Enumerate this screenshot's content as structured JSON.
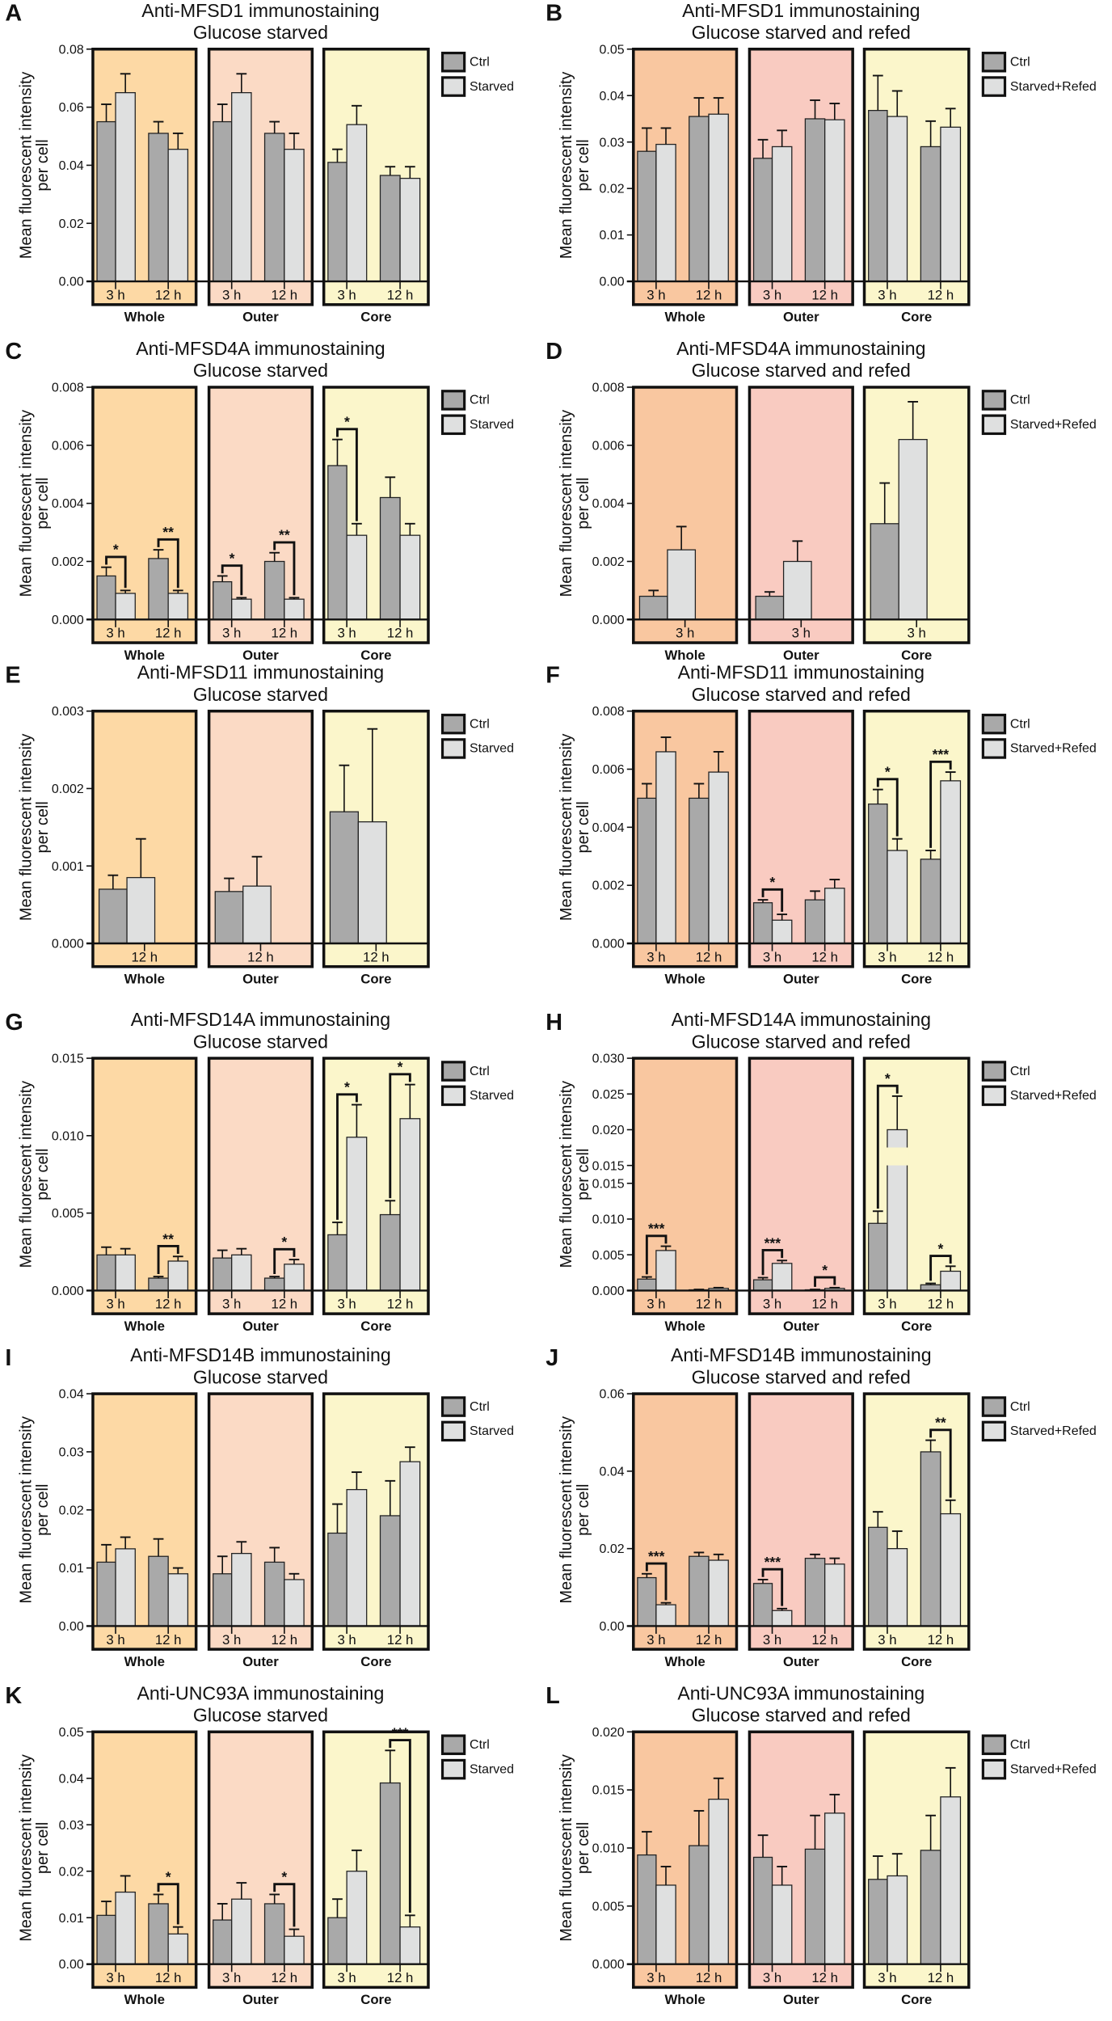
{
  "colors": {
    "ctrl": "#a9a9a9",
    "treated": "#dfe0e0",
    "left_bg": [
      "#fdd9a5",
      "#fbdac5",
      "#fbf6cb"
    ],
    "right_bg": [
      "#f9c7a0",
      "#f9cbc1",
      "#fbf6cb"
    ]
  },
  "chart_data": [
    {
      "type": "bar",
      "letter": "A",
      "title": [
        "Anti-MFSD1 immunostaining",
        "Glucose starved"
      ],
      "ylabel": [
        "Mean fluorescent intensity",
        "per cell"
      ],
      "ylim": [
        0,
        0.08
      ],
      "yticks": [
        "0.00",
        "0.02",
        "0.04",
        "0.06",
        "0.08"
      ],
      "legend": [
        "Ctrl",
        "Starved"
      ],
      "regions": [
        "Whole",
        "Outer",
        "Core"
      ],
      "timepoints": [
        "3 h",
        "12 h"
      ],
      "data": {
        "Whole": [
          [
            0.055,
            0.006,
            0.065,
            0.0065,
            ""
          ],
          [
            0.051,
            0.004,
            0.0455,
            0.0055,
            ""
          ]
        ],
        "Outer": [
          [
            0.055,
            0.006,
            0.065,
            0.0065,
            ""
          ],
          [
            0.051,
            0.004,
            0.0455,
            0.0055,
            ""
          ]
        ],
        "Core": [
          [
            0.041,
            0.0045,
            0.054,
            0.0065,
            ""
          ],
          [
            0.0365,
            0.003,
            0.0355,
            0.004,
            ""
          ]
        ]
      }
    },
    {
      "type": "bar",
      "letter": "B",
      "title": [
        "Anti-MFSD1 immunostaining",
        "Glucose starved and refed"
      ],
      "ylabel": [
        "Mean fluorescent intensity",
        "per cell"
      ],
      "ylim": [
        0,
        0.05
      ],
      "yticks": [
        "0.00",
        "0.01",
        "0.02",
        "0.03",
        "0.04",
        "0.05"
      ],
      "legend": [
        "Ctrl",
        "Starved+Refed"
      ],
      "regions": [
        "Whole",
        "Outer",
        "Core"
      ],
      "timepoints": [
        "3 h",
        "12 h"
      ],
      "data": {
        "Whole": [
          [
            0.028,
            0.005,
            0.0295,
            0.0035,
            ""
          ],
          [
            0.0355,
            0.004,
            0.036,
            0.0035,
            ""
          ]
        ],
        "Outer": [
          [
            0.0265,
            0.004,
            0.029,
            0.0035,
            ""
          ],
          [
            0.035,
            0.004,
            0.0348,
            0.0035,
            ""
          ]
        ],
        "Core": [
          [
            0.0368,
            0.0075,
            0.0355,
            0.0055,
            ""
          ],
          [
            0.029,
            0.0055,
            0.0332,
            0.004,
            ""
          ]
        ]
      }
    },
    {
      "type": "bar",
      "letter": "C",
      "title": [
        "Anti-MFSD4A immunostaining",
        "Glucose starved"
      ],
      "ylabel": [
        "Mean fluorescent intensity",
        "per cell"
      ],
      "ylim": [
        0,
        0.008
      ],
      "yticks": [
        "0.000",
        "0.002",
        "0.004",
        "0.006",
        "0.008"
      ],
      "legend": [
        "Ctrl",
        "Starved"
      ],
      "regions": [
        "Whole",
        "Outer",
        "Core"
      ],
      "timepoints": [
        "3 h",
        "12 h"
      ],
      "data": {
        "Whole": [
          [
            0.0015,
            0.0003,
            0.0009,
            0.0001,
            "*"
          ],
          [
            0.0021,
            0.0003,
            0.0009,
            0.0001,
            "**"
          ]
        ],
        "Outer": [
          [
            0.0013,
            0.0002,
            0.0007,
            5e-05,
            "*"
          ],
          [
            0.002,
            0.0003,
            0.0007,
            5e-05,
            "**"
          ]
        ],
        "Core": [
          [
            0.0053,
            0.0009,
            0.0029,
            0.0004,
            "*"
          ],
          [
            0.0042,
            0.0007,
            0.0029,
            0.0004,
            ""
          ]
        ]
      }
    },
    {
      "type": "bar",
      "letter": "D",
      "title": [
        "Anti-MFSD4A immunostaining",
        "Glucose starved and refed"
      ],
      "ylabel": [
        "Mean fluorescent intensity",
        "per cell"
      ],
      "ylim": [
        0,
        0.008
      ],
      "yticks": [
        "0.000",
        "0.002",
        "0.004",
        "0.006",
        "0.008"
      ],
      "legend": [
        "Ctrl",
        "Starved+Refed"
      ],
      "regions": [
        "Whole",
        "Outer",
        "Core"
      ],
      "timepoints": [
        "3 h"
      ],
      "data": {
        "Whole": [
          [
            0.0008,
            0.0002,
            0.0024,
            0.0008,
            ""
          ]
        ],
        "Outer": [
          [
            0.0008,
            0.00015,
            0.002,
            0.0007,
            ""
          ]
        ],
        "Core": [
          [
            0.0033,
            0.0014,
            0.0062,
            0.0013,
            ""
          ]
        ]
      }
    },
    {
      "type": "bar",
      "letter": "E",
      "title": [
        "Anti-MFSD11 immunostaining",
        "Glucose starved"
      ],
      "ylabel": [
        "Mean fluorescent intensity",
        "per cell"
      ],
      "ylim": [
        0,
        0.003
      ],
      "yticks": [
        "0.000",
        "0.001",
        "0.002",
        "0.003"
      ],
      "legend": [
        "Ctrl",
        "Starved"
      ],
      "regions": [
        "Whole",
        "Outer",
        "Core"
      ],
      "timepoints": [
        "12 h"
      ],
      "data": {
        "Whole": [
          [
            0.0007,
            0.00018,
            0.00085,
            0.0005,
            ""
          ]
        ],
        "Outer": [
          [
            0.00067,
            0.00017,
            0.00074,
            0.00038,
            ""
          ]
        ],
        "Core": [
          [
            0.0017,
            0.0006,
            0.00157,
            0.0012,
            ""
          ]
        ]
      }
    },
    {
      "type": "bar",
      "letter": "F",
      "title": [
        "Anti-MFSD11 immunostaining",
        "Glucose starved and refed"
      ],
      "ylabel": [
        "Mean fluorescent intensity",
        "per cell"
      ],
      "ylim": [
        0,
        0.008
      ],
      "yticks": [
        "0.000",
        "0.002",
        "0.004",
        "0.006",
        "0.008"
      ],
      "legend": [
        "Ctrl",
        "Starved+Refed"
      ],
      "regions": [
        "Whole",
        "Outer",
        "Core"
      ],
      "timepoints": [
        "3 h",
        "12 h"
      ],
      "data": {
        "Whole": [
          [
            0.005,
            0.0005,
            0.0066,
            0.0005,
            ""
          ],
          [
            0.005,
            0.0005,
            0.0059,
            0.0007,
            ""
          ]
        ],
        "Outer": [
          [
            0.0014,
            0.0001,
            0.0008,
            0.0002,
            "*"
          ],
          [
            0.0015,
            0.0003,
            0.0019,
            0.0003,
            ""
          ]
        ],
        "Core": [
          [
            0.0048,
            0.0005,
            0.0032,
            0.0004,
            "*"
          ],
          [
            0.0029,
            0.0003,
            0.0056,
            0.0003,
            "***"
          ]
        ]
      }
    },
    {
      "type": "bar",
      "letter": "G",
      "title": [
        "Anti-MFSD14A immunostaining",
        "Glucose starved"
      ],
      "ylabel": [
        "Mean fluorescent intensity",
        "per cell"
      ],
      "ylim": [
        0,
        0.015
      ],
      "yticks": [
        "0.000",
        "0.005",
        "0.010",
        "0.015"
      ],
      "legend": [
        "Ctrl",
        "Starved"
      ],
      "regions": [
        "Whole",
        "Outer",
        "Core"
      ],
      "timepoints": [
        "3 h",
        "12 h"
      ],
      "data": {
        "Whole": [
          [
            0.0023,
            0.0005,
            0.0023,
            0.0004,
            ""
          ],
          [
            0.0008,
            0.0001,
            0.0019,
            0.0003,
            "**"
          ]
        ],
        "Outer": [
          [
            0.0021,
            0.0005,
            0.0023,
            0.0004,
            ""
          ],
          [
            0.0008,
            0.0001,
            0.0017,
            0.0003,
            "*"
          ]
        ],
        "Core": [
          [
            0.0036,
            0.0008,
            0.0099,
            0.0021,
            "*"
          ],
          [
            0.0049,
            0.0009,
            0.0111,
            0.0022,
            "*"
          ]
        ]
      }
    },
    {
      "type": "bar",
      "letter": "H",
      "title": [
        "Anti-MFSD14A immunostaining",
        "Glucose starved and refed"
      ],
      "ylabel": [
        "Mean fluorescent intensity",
        "per cell"
      ],
      "ylim": [
        0,
        0.03
      ],
      "axis_break": {
        "at": 0.015,
        "gap": 0.0025
      },
      "yticks": [
        "0.000",
        "0.005",
        "0.010",
        "0.015"
      ],
      "yticks_upper": [
        "0.015",
        "0.020",
        "0.025",
        "0.030"
      ],
      "legend": [
        "Ctrl",
        "Starved+Refed"
      ],
      "regions": [
        "Whole",
        "Outer",
        "Core"
      ],
      "timepoints": [
        "3 h",
        "12 h"
      ],
      "data": {
        "Whole": [
          [
            0.0016,
            0.0003,
            0.0056,
            0.0006,
            "***"
          ],
          [
            0.0001,
            5e-05,
            0.0003,
            0.0001,
            ""
          ]
        ],
        "Outer": [
          [
            0.0015,
            0.0003,
            0.0038,
            0.0004,
            "***"
          ],
          [
            0.0001,
            5e-05,
            0.0003,
            0.0001,
            "*"
          ]
        ],
        "Core": [
          [
            0.0094,
            0.0017,
            0.02,
            0.0047,
            "*"
          ],
          [
            0.0008,
            0.0002,
            0.0027,
            0.0007,
            "*"
          ]
        ]
      }
    },
    {
      "type": "bar",
      "letter": "I",
      "title": [
        "Anti-MFSD14B immunostaining",
        "Glucose starved"
      ],
      "ylabel": [
        "Mean fluorescent intensity",
        "per cell"
      ],
      "ylim": [
        0,
        0.04
      ],
      "yticks": [
        "0.00",
        "0.01",
        "0.02",
        "0.03",
        "0.04"
      ],
      "legend": [
        "Ctrl",
        "Starved"
      ],
      "regions": [
        "Whole",
        "Outer",
        "Core"
      ],
      "timepoints": [
        "3 h",
        "12 h"
      ],
      "data": {
        "Whole": [
          [
            0.011,
            0.003,
            0.0133,
            0.002,
            ""
          ],
          [
            0.012,
            0.003,
            0.009,
            0.001,
            ""
          ]
        ],
        "Outer": [
          [
            0.009,
            0.003,
            0.0125,
            0.002,
            ""
          ],
          [
            0.011,
            0.0025,
            0.008,
            0.001,
            ""
          ]
        ],
        "Core": [
          [
            0.016,
            0.005,
            0.0235,
            0.003,
            ""
          ],
          [
            0.019,
            0.006,
            0.0283,
            0.0025,
            ""
          ]
        ]
      }
    },
    {
      "type": "bar",
      "letter": "J",
      "title": [
        "Anti-MFSD14B immunostaining",
        "Glucose starved and refed"
      ],
      "ylabel": [
        "Mean fluorescent intensity",
        "per cell"
      ],
      "ylim": [
        0,
        0.06
      ],
      "yticks": [
        "0.00",
        "0.02",
        "0.04",
        "0.06"
      ],
      "legend": [
        "Ctrl",
        "Starved+Refed"
      ],
      "regions": [
        "Whole",
        "Outer",
        "Core"
      ],
      "timepoints": [
        "3 h",
        "12 h"
      ],
      "data": {
        "Whole": [
          [
            0.0125,
            0.001,
            0.0055,
            0.0005,
            "***"
          ],
          [
            0.018,
            0.001,
            0.017,
            0.0015,
            ""
          ]
        ],
        "Outer": [
          [
            0.011,
            0.001,
            0.004,
            0.0005,
            "***"
          ],
          [
            0.0175,
            0.001,
            0.016,
            0.0015,
            ""
          ]
        ],
        "Core": [
          [
            0.0255,
            0.004,
            0.02,
            0.0045,
            ""
          ],
          [
            0.045,
            0.003,
            0.029,
            0.0035,
            "**"
          ]
        ]
      }
    },
    {
      "type": "bar",
      "letter": "K",
      "title": [
        "Anti-UNC93A immunostaining",
        "Glucose starved"
      ],
      "ylabel": [
        "Mean fluorescent intensity",
        "per cell"
      ],
      "ylim": [
        0,
        0.05
      ],
      "yticks": [
        "0.00",
        "0.01",
        "0.02",
        "0.03",
        "0.04",
        "0.05"
      ],
      "legend": [
        "Ctrl",
        "Starved"
      ],
      "regions": [
        "Whole",
        "Outer",
        "Core"
      ],
      "timepoints": [
        "3 h",
        "12 h"
      ],
      "data": {
        "Whole": [
          [
            0.0105,
            0.003,
            0.0155,
            0.0035,
            ""
          ],
          [
            0.013,
            0.002,
            0.0065,
            0.0015,
            "*"
          ]
        ],
        "Outer": [
          [
            0.0095,
            0.0035,
            0.014,
            0.0035,
            ""
          ],
          [
            0.013,
            0.002,
            0.006,
            0.0015,
            "*"
          ]
        ],
        "Core": [
          [
            0.01,
            0.004,
            0.02,
            0.0045,
            ""
          ],
          [
            0.039,
            0.007,
            0.008,
            0.0025,
            "***"
          ]
        ]
      }
    },
    {
      "type": "bar",
      "letter": "L",
      "title": [
        "Anti-UNC93A immunostaining",
        "Glucose starved and refed"
      ],
      "ylabel": [
        "Mean fluorescent intensity",
        "per cell"
      ],
      "ylim": [
        0,
        0.02
      ],
      "yticks": [
        "0.000",
        "0.005",
        "0.010",
        "0.015",
        "0.020"
      ],
      "legend": [
        "Ctrl",
        "Starved+Refed"
      ],
      "regions": [
        "Whole",
        "Outer",
        "Core"
      ],
      "timepoints": [
        "3 h",
        "12 h"
      ],
      "data": {
        "Whole": [
          [
            0.0094,
            0.002,
            0.0068,
            0.0016,
            ""
          ],
          [
            0.0102,
            0.003,
            0.0142,
            0.0018,
            ""
          ]
        ],
        "Outer": [
          [
            0.0092,
            0.0019,
            0.0068,
            0.0016,
            ""
          ],
          [
            0.0099,
            0.0029,
            0.013,
            0.0016,
            ""
          ]
        ],
        "Core": [
          [
            0.0073,
            0.002,
            0.0076,
            0.0019,
            ""
          ],
          [
            0.0098,
            0.003,
            0.0144,
            0.0025,
            ""
          ]
        ]
      }
    }
  ]
}
